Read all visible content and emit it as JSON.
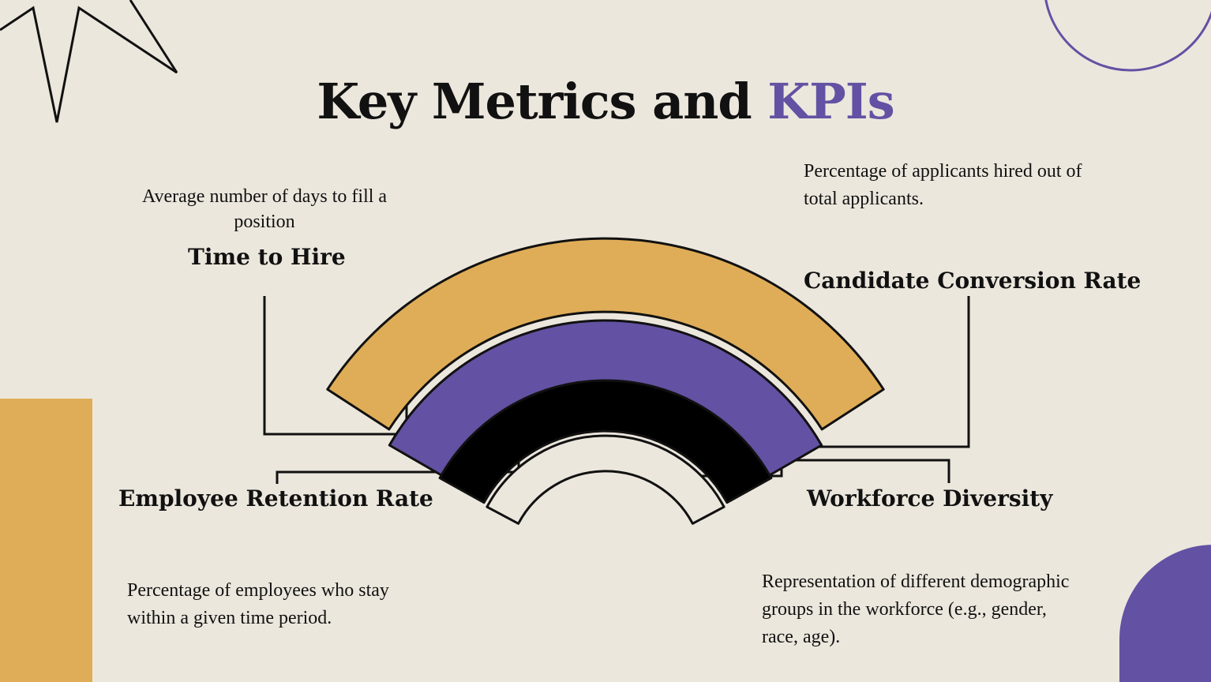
{
  "colors": {
    "background": "#ece7dd",
    "gold": "#dfad58",
    "purple": "#6351a3",
    "black": "#000000",
    "cream": "#ece7dd"
  },
  "title": {
    "main": "Key Metrics and",
    "accent": "KPIs"
  },
  "decorations": {
    "top_left": "star-outline-icon",
    "top_right": "circle-outline-icon",
    "left": "gold-rectangle",
    "bottom_right": "purple-quarter-circle"
  },
  "metrics": {
    "time_to_hire": {
      "label": "Time to Hire",
      "description": "Average number of days to fill a position",
      "color": "#dfad58"
    },
    "candidate_conversion": {
      "label": "Candidate Conversion Rate",
      "description": "Percentage of applicants hired out of total applicants.",
      "color": "#6351a3"
    },
    "employee_retention": {
      "label": "Employee Retention Rate",
      "description": "Percentage of employees who stay within a given time period.",
      "color": "#000000"
    },
    "workforce_diversity": {
      "label": "Workforce Diversity",
      "description": "Representation of different demographic groups in the workforce (e.g., gender, race, age).",
      "color": "#ece7dd"
    }
  }
}
